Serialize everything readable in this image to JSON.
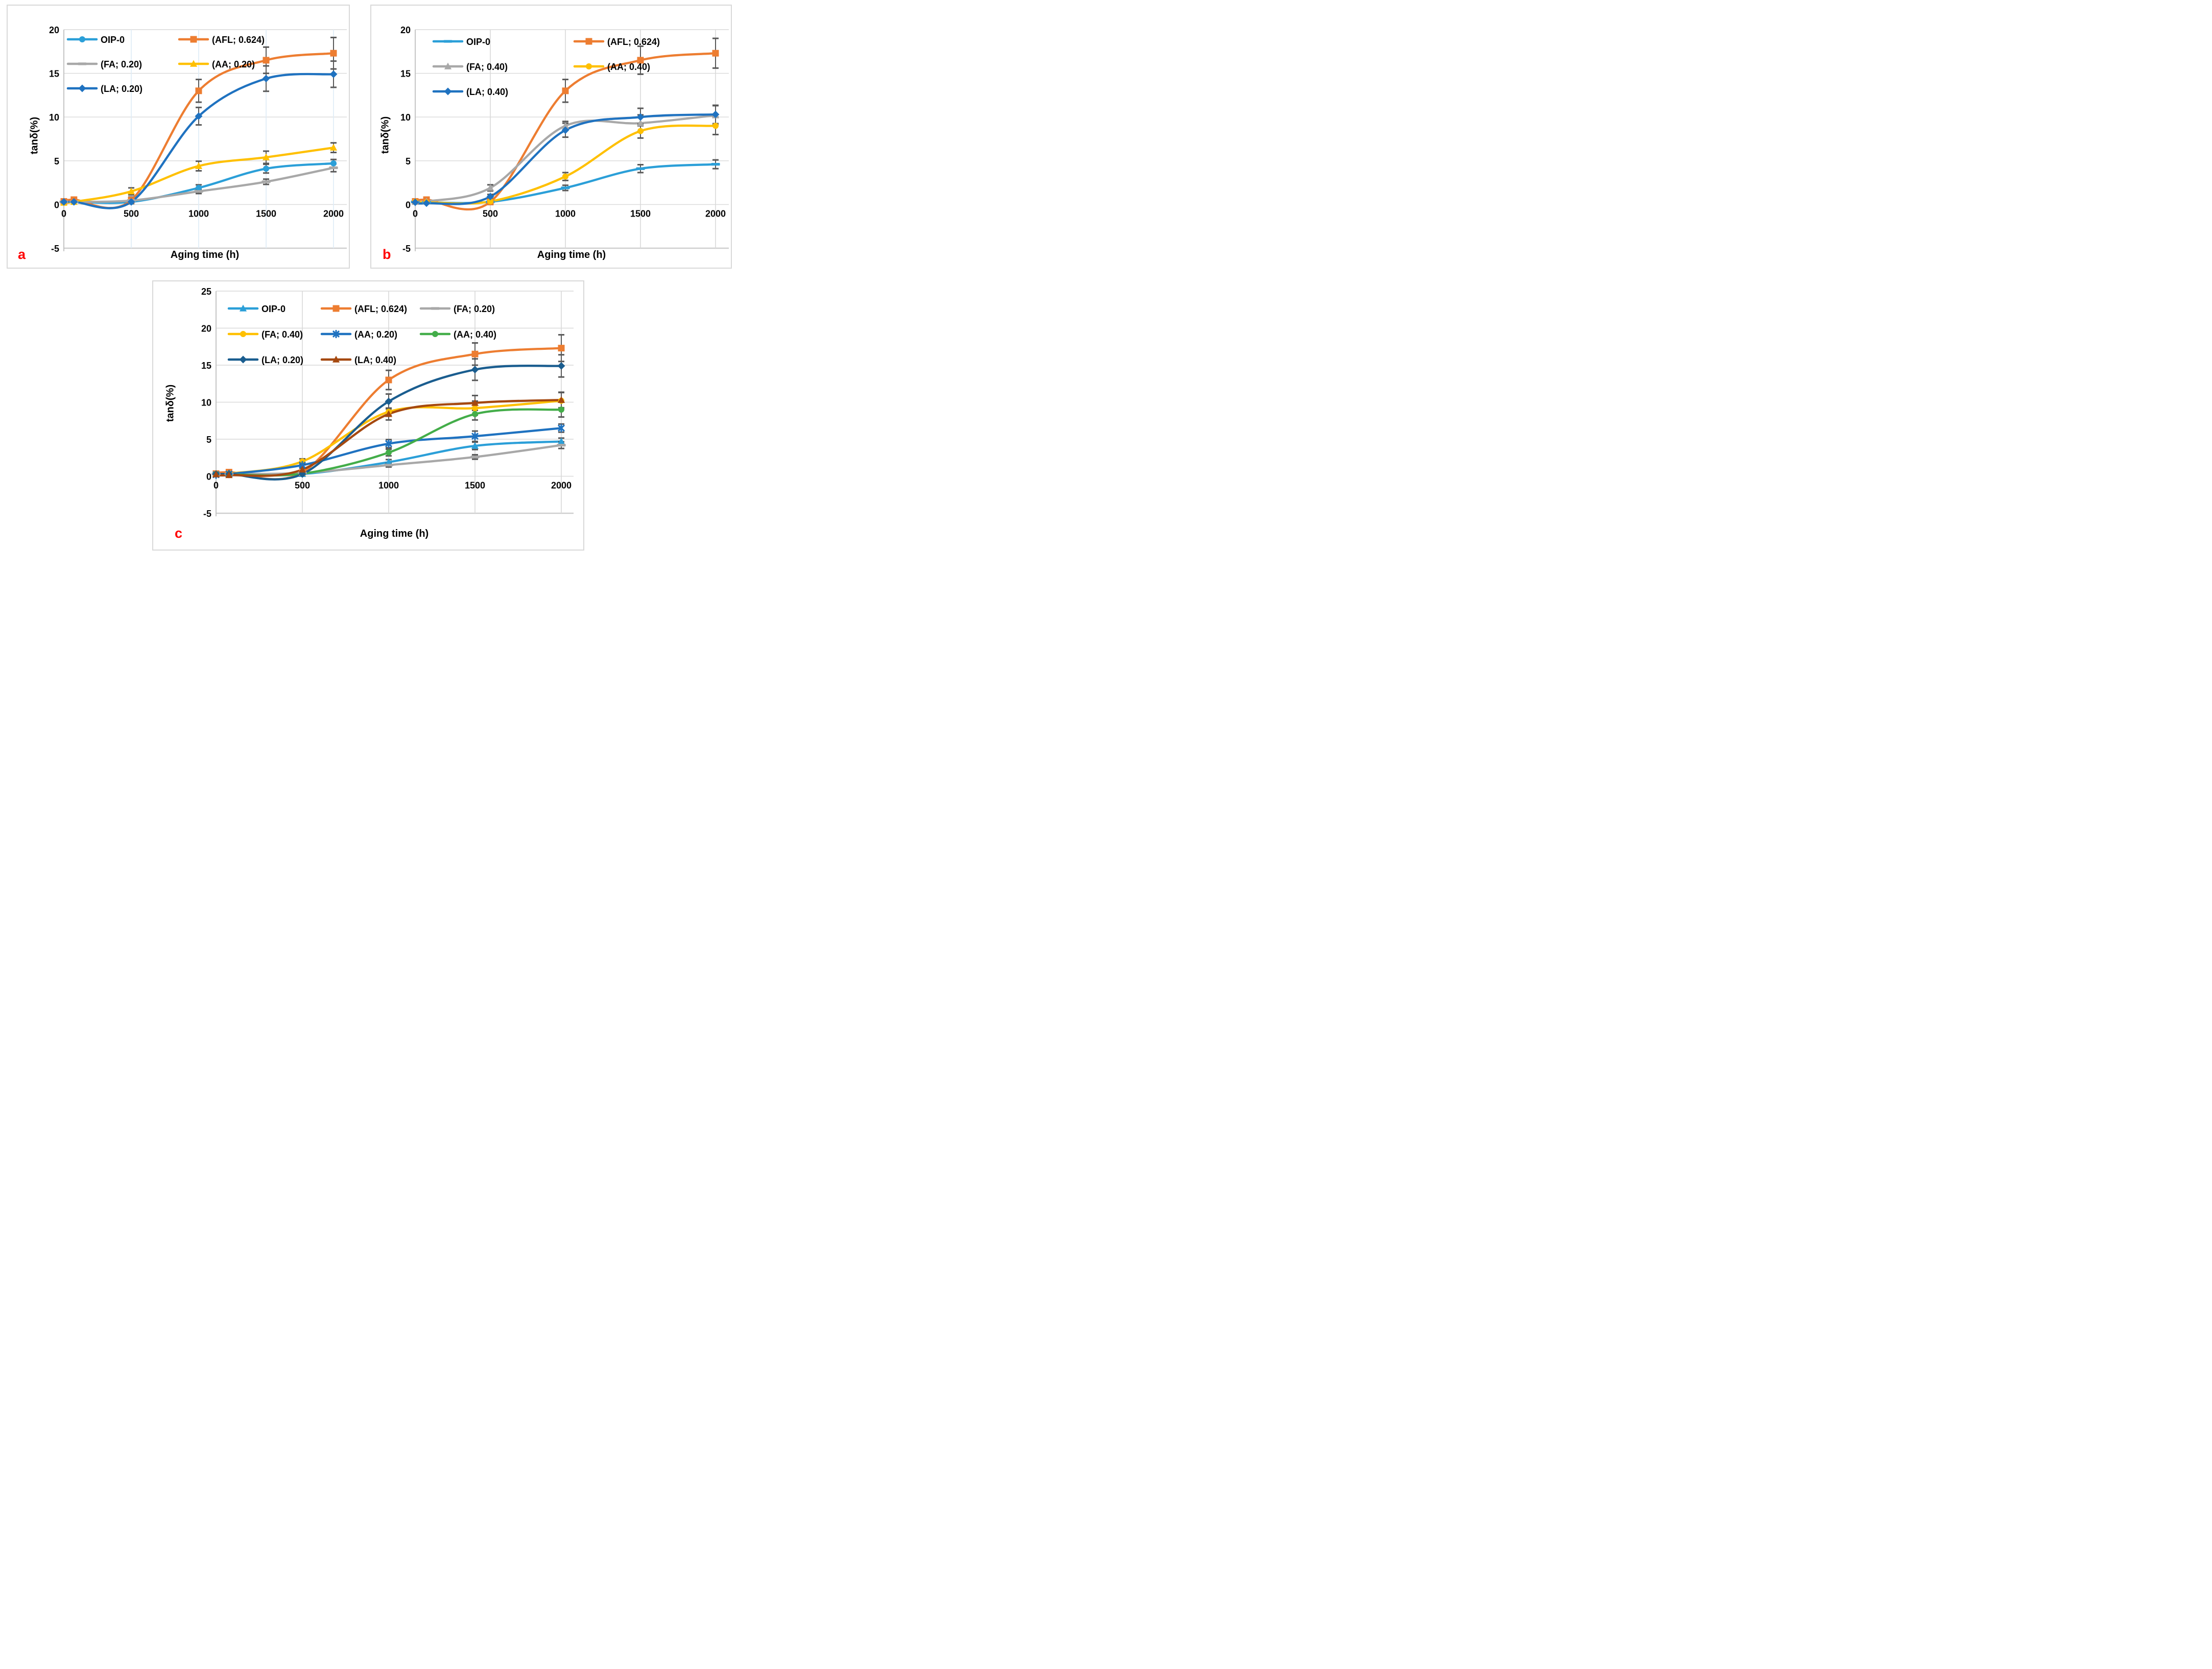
{
  "figure": {
    "background": "#ffffff",
    "panel_letter_color": "#ff0000",
    "gridline_color": "#d9d9d9",
    "axis_line_color": "#bfbfbf",
    "error_bar_color": "#595959"
  },
  "chart_data": [
    {
      "type": "line",
      "panel_label": "a",
      "xlabel": "Aging time (h)",
      "ylabel": "tanδ(%)",
      "x": [
        0,
        75,
        500,
        1000,
        1500,
        2000
      ],
      "xticks": [
        0,
        500,
        1000,
        1500,
        2000
      ],
      "yticks": [
        -5,
        0,
        5,
        10,
        15,
        20
      ],
      "ylim": [
        -5,
        20
      ],
      "grid": true,
      "legend_position": "top-left-inside",
      "legend_columns": 2,
      "vertical_grid_color": "#deebf7",
      "series": [
        {
          "name": "OIP-0",
          "color": "#2b9fd8",
          "marker": "circle",
          "values": [
            0.3,
            0.3,
            0.3,
            1.9,
            4.1,
            4.7
          ],
          "errors": [
            0,
            0,
            0,
            0.35,
            0.5,
            0.45
          ]
        },
        {
          "name": "(AFL; 0.624)",
          "color": "#ed7d31",
          "marker": "square",
          "values": [
            0.35,
            0.55,
            0.5,
            13.0,
            16.5,
            17.3
          ],
          "errors": [
            0.15,
            0.2,
            0.35,
            1.3,
            1.5,
            1.8
          ]
        },
        {
          "name": "(FA; 0.20)",
          "color": "#a8a8a8",
          "marker": "dash",
          "values": [
            0.3,
            0.3,
            0.45,
            1.5,
            2.6,
            4.2
          ],
          "errors": [
            0,
            0,
            0.15,
            0.25,
            0.3,
            0.45
          ]
        },
        {
          "name": "(AA; 0.20)",
          "color": "#ffc000",
          "marker": "triangle",
          "values": [
            0.2,
            0.3,
            1.5,
            4.4,
            5.4,
            6.5
          ],
          "errors": [
            0,
            0,
            0.4,
            0.55,
            0.7,
            0.55
          ]
        },
        {
          "name": "(LA; 0.20)",
          "color": "#1f72c0",
          "marker": "diamond",
          "values": [
            0.3,
            0.3,
            0.3,
            10.1,
            14.4,
            14.9
          ],
          "errors": [
            0,
            0,
            0.2,
            1.0,
            1.45,
            1.5
          ]
        }
      ]
    },
    {
      "type": "line",
      "panel_label": "b",
      "xlabel": "Aging time (h)",
      "ylabel": "tanδ(%)",
      "x": [
        0,
        75,
        500,
        1000,
        1500,
        2000
      ],
      "xticks": [
        0,
        500,
        1000,
        1500,
        2000
      ],
      "yticks": [
        -5,
        0,
        5,
        10,
        15,
        20
      ],
      "ylim": [
        -5,
        20
      ],
      "grid": true,
      "legend_position": "top-left-inside",
      "legend_columns": 2,
      "vertical_grid_color": "#d9d9d9",
      "series": [
        {
          "name": "OIP-0",
          "color": "#2b9fd8",
          "marker": "dash",
          "values": [
            0.3,
            0.25,
            0.3,
            1.9,
            4.1,
            4.6
          ],
          "errors": [
            0,
            0,
            0,
            0.3,
            0.45,
            0.5
          ]
        },
        {
          "name": "(AFL; 0.624)",
          "color": "#ed7d31",
          "marker": "square",
          "values": [
            0.35,
            0.55,
            0.3,
            13.0,
            16.5,
            17.3
          ],
          "errors": [
            0.15,
            0.2,
            0.3,
            1.3,
            1.6,
            1.7
          ]
        },
        {
          "name": "(FA; 0.40)",
          "color": "#a8a8a8",
          "marker": "triangle",
          "values": [
            0.3,
            0.35,
            1.9,
            9.0,
            9.3,
            10.2
          ],
          "errors": [
            0,
            0,
            0.35,
            0.5,
            0.95,
            1.1
          ]
        },
        {
          "name": "(AA; 0.40)",
          "color": "#ffc000",
          "marker": "circle",
          "values": [
            0.3,
            0.25,
            0.35,
            3.2,
            8.4,
            9.0
          ],
          "errors": [
            0,
            0,
            0.2,
            0.45,
            0.8,
            1.0
          ]
        },
        {
          "name": "(LA; 0.40)",
          "color": "#1f72c0",
          "marker": "diamond",
          "values": [
            0.25,
            0.15,
            0.9,
            8.5,
            10.0,
            10.3
          ],
          "errors": [
            0,
            0,
            0.25,
            0.8,
            1.0,
            1.05
          ]
        }
      ]
    },
    {
      "type": "line",
      "panel_label": "c",
      "xlabel": "Aging time (h)",
      "ylabel": "tanδ(%)",
      "x": [
        0,
        75,
        500,
        1000,
        1500,
        2000
      ],
      "xticks": [
        0,
        500,
        1000,
        1500,
        2000
      ],
      "yticks": [
        -5,
        0,
        5,
        10,
        15,
        20,
        25
      ],
      "ylim": [
        -5,
        25
      ],
      "grid": true,
      "legend_position": "top-left-inside",
      "legend_columns": 3,
      "vertical_grid_color": "#d9d9d9",
      "series": [
        {
          "name": "OIP-0",
          "color": "#2b9fd8",
          "marker": "triangle",
          "values": [
            0.3,
            0.3,
            0.3,
            1.9,
            4.1,
            4.7
          ],
          "errors": [
            0,
            0,
            0,
            0.35,
            0.5,
            0.45
          ]
        },
        {
          "name": "(AFL; 0.624)",
          "color": "#ed7d31",
          "marker": "square",
          "values": [
            0.35,
            0.55,
            0.5,
            13.0,
            16.5,
            17.3
          ],
          "errors": [
            0.15,
            0.2,
            0.35,
            1.3,
            1.5,
            1.8
          ]
        },
        {
          "name": "(FA; 0.20)",
          "color": "#a8a8a8",
          "marker": "dash",
          "values": [
            0.3,
            0.3,
            0.45,
            1.5,
            2.6,
            4.2
          ],
          "errors": [
            0,
            0,
            0.15,
            0.25,
            0.3,
            0.45
          ]
        },
        {
          "name": "(FA; 0.40)",
          "color": "#ffc000",
          "marker": "circle",
          "values": [
            0.3,
            0.35,
            2.0,
            8.7,
            9.2,
            10.2
          ],
          "errors": [
            0,
            0,
            0.35,
            0.5,
            0.95,
            1.1
          ]
        },
        {
          "name": "(AA; 0.20)",
          "color": "#1f72c0",
          "marker": "asterisk",
          "values": [
            0.2,
            0.3,
            1.5,
            4.4,
            5.4,
            6.5
          ],
          "errors": [
            0,
            0,
            0.4,
            0.55,
            0.7,
            0.55
          ]
        },
        {
          "name": "(AA; 0.40)",
          "color": "#43ad49",
          "marker": "circle",
          "values": [
            0.3,
            0.25,
            0.35,
            3.2,
            8.4,
            9.0
          ],
          "errors": [
            0,
            0,
            0.2,
            0.45,
            0.8,
            1.0
          ]
        },
        {
          "name": "(LA; 0.20)",
          "color": "#1a5d8f",
          "marker": "diamond",
          "values": [
            0.3,
            0.3,
            0.3,
            10.1,
            14.4,
            14.9
          ],
          "errors": [
            0,
            0,
            0.2,
            1.0,
            1.45,
            1.5
          ]
        },
        {
          "name": "(LA; 0.40)",
          "color": "#a5480f",
          "marker": "triangle",
          "values": [
            0.25,
            0.15,
            0.9,
            8.4,
            9.9,
            10.3
          ],
          "errors": [
            0,
            0,
            0.25,
            0.8,
            1.0,
            1.05
          ]
        }
      ]
    }
  ]
}
